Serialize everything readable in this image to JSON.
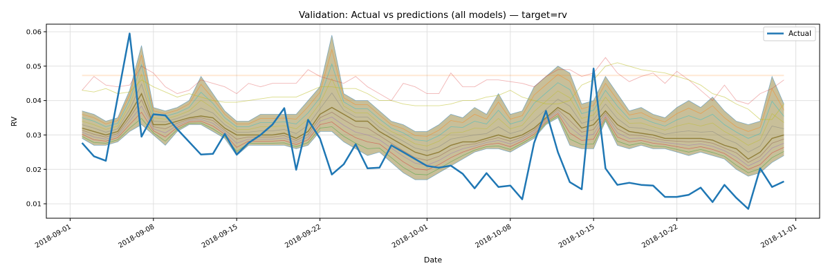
{
  "chart_data": {
    "type": "line",
    "title": "Validation: Actual vs predictions (all models) — target=rv",
    "xlabel": "Date",
    "ylabel": "RV",
    "xlim": [
      "2018-08-30",
      "2018-11-03"
    ],
    "ylim": [
      0.0058,
      0.0622
    ],
    "grid": true,
    "legend": {
      "position": "top-right",
      "entries": [
        "Actual"
      ]
    },
    "x_ticks": [
      "2018-09-01",
      "2018-09-08",
      "2018-09-15",
      "2018-09-22",
      "2018-10-01",
      "2018-10-08",
      "2018-10-15",
      "2018-10-22",
      "2018-11-01"
    ],
    "y_ticks": [
      0.01,
      0.02,
      0.03,
      0.04,
      0.05,
      0.06
    ],
    "y_tick_labels": [
      "0.01",
      "0.02",
      "0.03",
      "0.04",
      "0.05",
      "0.06"
    ],
    "start_date": "2018-09-02",
    "actual": {
      "name": "Actual",
      "color": "#1f77b4",
      "values": [
        0.0277,
        0.0238,
        0.0225,
        0.041,
        0.0595,
        0.0295,
        0.036,
        0.0357,
        0.0317,
        0.028,
        0.0243,
        0.0245,
        0.0303,
        0.0243,
        0.0277,
        0.03,
        0.033,
        0.0378,
        0.0199,
        0.0344,
        0.029,
        0.0185,
        0.0215,
        0.0273,
        0.0203,
        0.0205,
        0.027,
        0.025,
        0.023,
        0.021,
        0.0205,
        0.0211,
        0.0187,
        0.0145,
        0.0189,
        0.0149,
        0.0153,
        0.0113,
        0.0277,
        0.037,
        0.025,
        0.0163,
        0.0142,
        0.0493,
        0.0203,
        0.0155,
        0.0161,
        0.0155,
        0.0153,
        0.012,
        0.012,
        0.0126,
        0.0147,
        0.0105,
        0.0155,
        0.0117,
        0.0085,
        0.0203,
        0.0149,
        0.0165
      ]
    },
    "predictions": {
      "band_color": "#9a8a45",
      "median": [
        0.032,
        0.031,
        0.03,
        0.031,
        0.036,
        0.042,
        0.033,
        0.033,
        0.034,
        0.035,
        0.0355,
        0.035,
        0.032,
        0.03,
        0.03,
        0.03,
        0.03,
        0.0305,
        0.029,
        0.031,
        0.036,
        0.038,
        0.036,
        0.034,
        0.034,
        0.031,
        0.029,
        0.027,
        0.025,
        0.024,
        0.025,
        0.027,
        0.028,
        0.028,
        0.029,
        0.03,
        0.029,
        0.03,
        0.032,
        0.035,
        0.038,
        0.036,
        0.032,
        0.033,
        0.037,
        0.033,
        0.031,
        0.0305,
        0.03,
        0.029,
        0.029,
        0.029,
        0.029,
        0.0285,
        0.027,
        0.026,
        0.023,
        0.025,
        0.029,
        0.03
      ],
      "upper": [
        0.037,
        0.036,
        0.034,
        0.035,
        0.043,
        0.056,
        0.038,
        0.037,
        0.038,
        0.04,
        0.047,
        0.042,
        0.037,
        0.034,
        0.034,
        0.036,
        0.036,
        0.036,
        0.036,
        0.04,
        0.044,
        0.059,
        0.042,
        0.04,
        0.04,
        0.037,
        0.034,
        0.033,
        0.031,
        0.031,
        0.033,
        0.036,
        0.035,
        0.038,
        0.036,
        0.042,
        0.036,
        0.037,
        0.044,
        0.047,
        0.05,
        0.048,
        0.039,
        0.04,
        0.047,
        0.042,
        0.037,
        0.038,
        0.036,
        0.035,
        0.038,
        0.04,
        0.038,
        0.041,
        0.037,
        0.034,
        0.033,
        0.034,
        0.047,
        0.039
      ],
      "lower": [
        0.029,
        0.027,
        0.027,
        0.028,
        0.031,
        0.033,
        0.03,
        0.027,
        0.031,
        0.033,
        0.033,
        0.031,
        0.029,
        0.024,
        0.027,
        0.027,
        0.027,
        0.027,
        0.026,
        0.027,
        0.031,
        0.031,
        0.028,
        0.026,
        0.024,
        0.025,
        0.022,
        0.019,
        0.017,
        0.017,
        0.019,
        0.021,
        0.023,
        0.025,
        0.026,
        0.026,
        0.025,
        0.027,
        0.029,
        0.033,
        0.035,
        0.027,
        0.026,
        0.026,
        0.034,
        0.027,
        0.026,
        0.027,
        0.026,
        0.026,
        0.025,
        0.024,
        0.025,
        0.024,
        0.023,
        0.02,
        0.018,
        0.019,
        0.022,
        0.024
      ],
      "outlier_series": [
        {
          "color": "#ff7f0e",
          "opacity": 0.18,
          "values": [
            0.0473,
            0.0473,
            0.0473,
            0.0473,
            0.0473,
            0.0473,
            0.0473,
            0.0473,
            0.0473,
            0.0473,
            0.0473,
            0.0473,
            0.0473,
            0.0473,
            0.0473,
            0.0473,
            0.0473,
            0.0473,
            0.0473,
            0.0473,
            0.0473,
            0.0473,
            0.0473,
            0.0473,
            0.0473,
            0.0473,
            0.0473,
            0.0473,
            0.0473,
            0.0473,
            0.0473,
            0.0473,
            0.0473,
            0.0473,
            0.0473,
            0.0473,
            0.0473,
            0.0473,
            0.0473,
            0.0473,
            0.0473,
            0.0473,
            0.0473,
            0.0473,
            0.0473,
            0.0473,
            0.0473,
            0.0473,
            0.0473,
            0.0473,
            0.0473,
            0.0473,
            0.0473,
            0.0473,
            0.0473,
            0.0473,
            0.0473,
            0.0473,
            0.0473,
            0.0473
          ]
        },
        {
          "color": "#d62728",
          "opacity": 0.35,
          "values": [
            0.043,
            0.047,
            0.0445,
            0.044,
            0.0445,
            0.05,
            0.048,
            0.044,
            0.042,
            0.043,
            0.046,
            0.045,
            0.044,
            0.042,
            0.045,
            0.044,
            0.045,
            0.045,
            0.045,
            0.049,
            0.047,
            0.046,
            0.045,
            0.047,
            0.044,
            0.042,
            0.04,
            0.045,
            0.044,
            0.042,
            0.042,
            0.048,
            0.044,
            0.044,
            0.046,
            0.046,
            0.0455,
            0.045,
            0.044,
            0.047,
            0.049,
            0.049,
            0.047,
            0.048,
            0.0525,
            0.048,
            0.0455,
            0.047,
            0.048,
            0.045,
            0.0485,
            0.046,
            0.043,
            0.04,
            0.0445,
            0.04,
            0.039,
            0.042,
            0.0435,
            0.046
          ]
        },
        {
          "color": "#bcbd22",
          "opacity": 0.55,
          "values": [
            0.043,
            0.0425,
            0.0435,
            0.042,
            0.0425,
            0.046,
            0.044,
            0.0425,
            0.041,
            0.042,
            0.041,
            0.04,
            0.0395,
            0.0395,
            0.04,
            0.0405,
            0.041,
            0.041,
            0.041,
            0.0425,
            0.044,
            0.044,
            0.0435,
            0.0435,
            0.042,
            0.04,
            0.04,
            0.039,
            0.0385,
            0.0385,
            0.0385,
            0.039,
            0.04,
            0.04,
            0.041,
            0.0415,
            0.043,
            0.041,
            0.04,
            0.039,
            0.039,
            0.04,
            0.0445,
            0.046,
            0.05,
            0.051,
            0.05,
            0.049,
            0.0485,
            0.048,
            0.047,
            0.046,
            0.0445,
            0.042,
            0.041,
            0.039,
            0.0375,
            0.0345,
            0.0345,
            0.039
          ]
        }
      ]
    }
  }
}
